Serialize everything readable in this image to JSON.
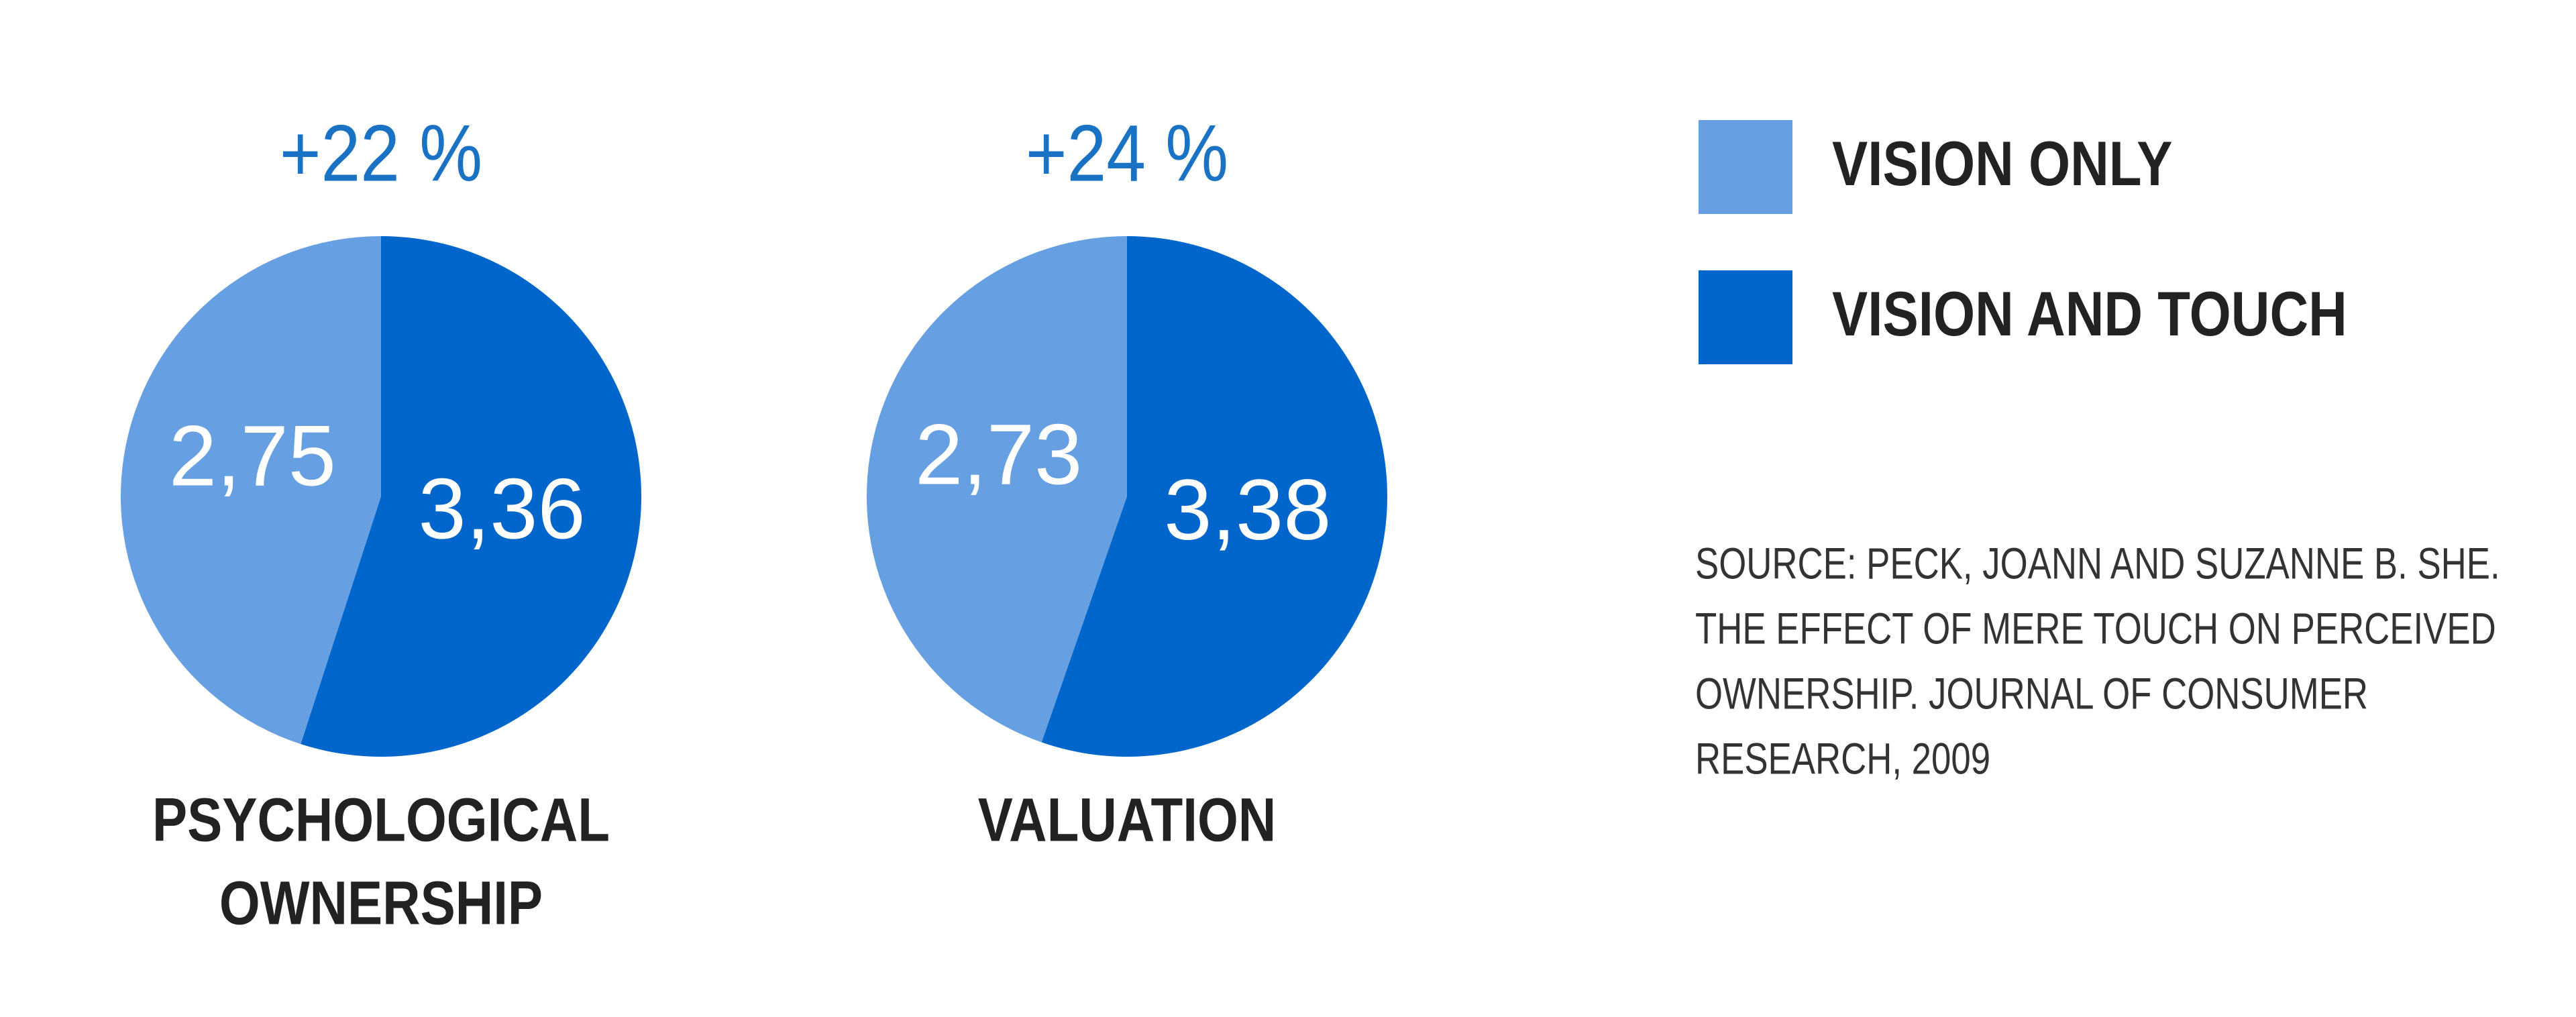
{
  "legend": [
    {
      "label": "VISION ONLY",
      "color": "#66a0e3"
    },
    {
      "label": "VISION AND TOUCH",
      "color": "#0066cc"
    }
  ],
  "source": [
    "SOURCE: PECK, JOANN AND SUZANNE B. SHE.",
    "THE EFFECT OF MERE TOUCH ON PERCEIVED",
    "OWNERSHIP. JOURNAL OF CONSUMER",
    "RESEARCH, 2009"
  ],
  "chart_data": [
    {
      "type": "pie",
      "title": [
        "PSYCHOLOGICAL",
        "OWNERSHIP"
      ],
      "annotation": "+22 %",
      "values": [
        2.75,
        3.36
      ],
      "value_labels": [
        "2,75",
        "3,36"
      ]
    },
    {
      "type": "pie",
      "title": [
        "VALUATION"
      ],
      "annotation": "+24 %",
      "values": [
        2.73,
        3.38
      ],
      "value_labels": [
        "2,73",
        "3,38"
      ]
    }
  ]
}
